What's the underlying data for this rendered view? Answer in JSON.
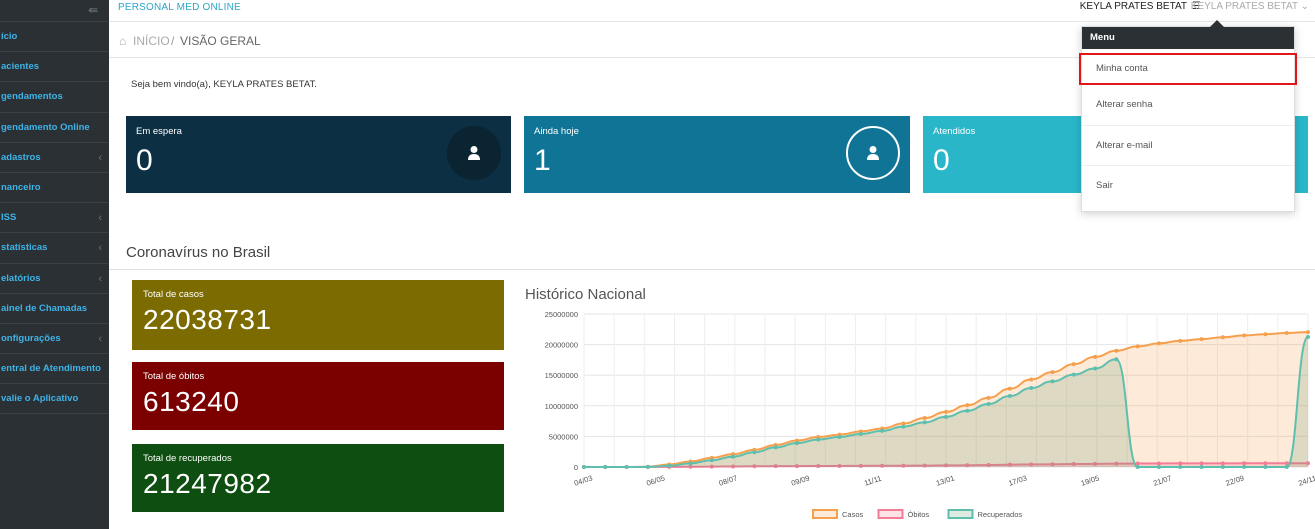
{
  "app": {
    "brand": "PERSONAL MED ONLINE"
  },
  "header": {
    "user_name": "KEYLA PRATES BETAT",
    "user_menu_label": "KEYLA PRATES BETAT"
  },
  "sidebar": {
    "items": [
      {
        "label": "ício",
        "has_caret": false
      },
      {
        "label": "acientes",
        "has_caret": false
      },
      {
        "label": "gendamentos",
        "has_caret": false
      },
      {
        "label": "gendamento Online",
        "has_caret": false
      },
      {
        "label": "adastros",
        "has_caret": true
      },
      {
        "label": "nanceiro",
        "has_caret": false
      },
      {
        "label": "ISS",
        "has_caret": true
      },
      {
        "label": "statísticas",
        "has_caret": true
      },
      {
        "label": "elatórios",
        "has_caret": true
      },
      {
        "label": "ainel de Chamadas",
        "has_caret": false
      },
      {
        "label": "onfigurações",
        "has_caret": true
      },
      {
        "label": "entral de Atendimento",
        "has_caret": false
      },
      {
        "label": "valie o Aplicativo",
        "has_caret": false
      }
    ]
  },
  "breadcrumb": {
    "home": "INÍCIO",
    "separator": "/",
    "current": "VISÃO GERAL"
  },
  "welcome": "Seja bem vindo(a), KEYLA PRATES BETAT.",
  "cards": [
    {
      "label": "Em espera",
      "value": "0",
      "color": "#0c2f43"
    },
    {
      "label": "Ainda hoje",
      "value": "1",
      "color": "#0f7495"
    },
    {
      "label": "Atendidos",
      "value": "0",
      "color": "#29b6c9"
    }
  ],
  "covid": {
    "section_title": "Coronavírus no Brasil",
    "boxes": [
      {
        "label": "Total de casos",
        "value": "22038731",
        "color": "#7b6b00"
      },
      {
        "label": "Total de óbitos",
        "value": "613240",
        "color": "#7b0000"
      },
      {
        "label": "Total de recuperados",
        "value": "21247982",
        "color": "#0e4e10"
      }
    ]
  },
  "dropdown": {
    "header": "Menu",
    "items": [
      "Minha conta",
      "Alterar senha",
      "Alterar e-mail",
      "Sair"
    ]
  },
  "chart_data": {
    "type": "area",
    "title": "Histórico Nacional",
    "x_ticks": [
      "04/03",
      "06/05",
      "08/07",
      "09/09",
      "11/11",
      "13/01",
      "17/03",
      "19/05",
      "21/07",
      "22/09",
      "24/11"
    ],
    "y_ticks": [
      "0",
      "5000000",
      "10000000",
      "15000000",
      "20000000",
      "25000000"
    ],
    "ylim": [
      0,
      25000000
    ],
    "legend_position": "bottom",
    "series": [
      {
        "name": "Casos",
        "color": "#f6a04d",
        "values": [
          0,
          0,
          0,
          50000,
          400000,
          900000,
          1500000,
          2100000,
          2800000,
          3600000,
          4300000,
          4900000,
          5300000,
          5800000,
          6300000,
          7100000,
          8000000,
          9000000,
          10100000,
          11300000,
          12800000,
          14300000,
          15500000,
          16800000,
          18000000,
          19000000,
          19700000,
          20200000,
          20600000,
          20900000,
          21200000,
          21500000,
          21700000,
          21900000,
          22038731
        ]
      },
      {
        "name": "Óbitos",
        "color": "#f47c96",
        "values": [
          0,
          0,
          0,
          2000,
          20000,
          40000,
          60000,
          90000,
          120000,
          140000,
          150000,
          160000,
          170000,
          190000,
          200000,
          210000,
          230000,
          260000,
          290000,
          330000,
          380000,
          420000,
          450000,
          480000,
          520000,
          550000,
          570000,
          580000,
          590000,
          595000,
          600000,
          605000,
          608000,
          611000,
          613240
        ]
      },
      {
        "name": "Recuperados",
        "color": "#5fbfae",
        "values": [
          0,
          0,
          0,
          20000,
          200000,
          600000,
          1100000,
          1700000,
          2400000,
          3200000,
          3900000,
          4500000,
          4900000,
          5400000,
          5900000,
          6600000,
          7300000,
          8200000,
          9200000,
          10300000,
          11600000,
          12900000,
          14000000,
          15100000,
          16100000,
          17600000,
          0,
          0,
          0,
          0,
          0,
          0,
          0,
          0,
          21247982
        ]
      }
    ]
  }
}
